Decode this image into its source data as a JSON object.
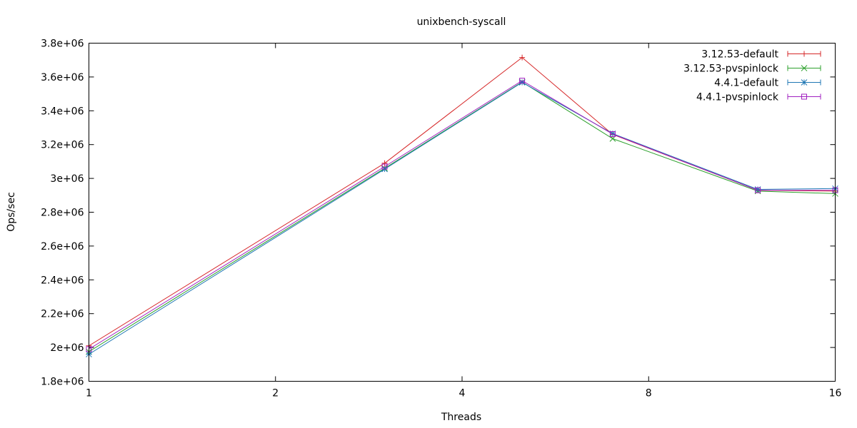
{
  "chart_data": {
    "type": "line",
    "title": "unixbench-syscall",
    "xlabel": "Threads",
    "ylabel": "Ops/sec",
    "x_scale": "log2",
    "xlim": [
      1,
      16
    ],
    "ylim": [
      1800000,
      3800000
    ],
    "x_ticks": [
      {
        "value": 1,
        "label": "1"
      },
      {
        "value": 2,
        "label": "2"
      },
      {
        "value": 4,
        "label": "4"
      },
      {
        "value": 8,
        "label": "8"
      },
      {
        "value": 16,
        "label": "16"
      }
    ],
    "y_ticks": [
      {
        "value": 1800000,
        "label": "1.8e+06"
      },
      {
        "value": 2000000,
        "label": "2e+06"
      },
      {
        "value": 2200000,
        "label": "2.2e+06"
      },
      {
        "value": 2400000,
        "label": "2.4e+06"
      },
      {
        "value": 2600000,
        "label": "2.6e+06"
      },
      {
        "value": 2800000,
        "label": "2.8e+06"
      },
      {
        "value": 3000000,
        "label": "3e+06"
      },
      {
        "value": 3200000,
        "label": "3.2e+06"
      },
      {
        "value": 3400000,
        "label": "3.4e+06"
      },
      {
        "value": 3600000,
        "label": "3.6e+06"
      },
      {
        "value": 3800000,
        "label": "3.8e+06"
      }
    ],
    "x": [
      1,
      3,
      5,
      7,
      12,
      16
    ],
    "series": [
      {
        "name": "3.12.53-default",
        "color": "#d62728",
        "marker": "plus",
        "values": [
          2010000,
          3090000,
          3715000,
          3260000,
          2930000,
          2925000
        ]
      },
      {
        "name": "3.12.53-pvspinlock",
        "color": "#2ca02c",
        "marker": "cross",
        "values": [
          1975000,
          3060000,
          3570000,
          3235000,
          2925000,
          2910000
        ]
      },
      {
        "name": "4.4.1-default",
        "color": "#1f77b4",
        "marker": "star",
        "values": [
          1960000,
          3055000,
          3568000,
          3265000,
          2935000,
          2940000
        ]
      },
      {
        "name": "4.4.1-pvspinlock",
        "color": "#a020c0",
        "marker": "square",
        "values": [
          1990000,
          3070000,
          3578000,
          3262000,
          2930000,
          2930000
        ]
      }
    ],
    "grid": false,
    "legend_position": "top-right"
  }
}
